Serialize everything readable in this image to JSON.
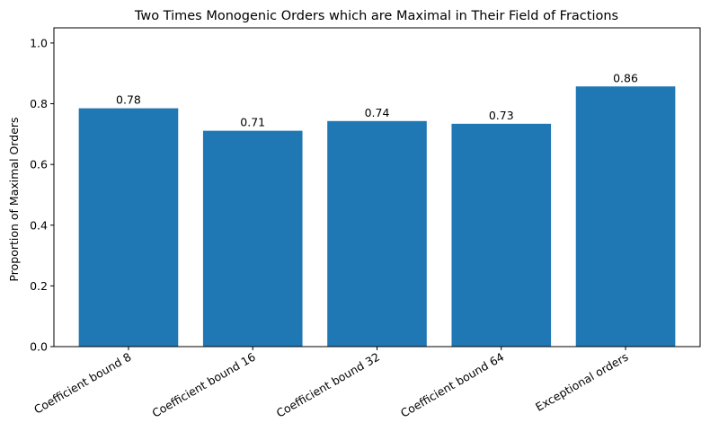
{
  "chart_data": {
    "type": "bar",
    "title": "Two Times Monogenic Orders which are Maximal in Their Field of Fractions",
    "xlabel": "",
    "ylabel": "Proportion of Maximal Orders",
    "categories": [
      "Coefficient bound 8",
      "Coefficient bound 16",
      "Coefficient bound 32",
      "Coefficient bound 64",
      "Exceptional orders"
    ],
    "values": [
      0.785,
      0.711,
      0.743,
      0.734,
      0.857
    ],
    "value_labels": [
      "0.78",
      "0.71",
      "0.74",
      "0.73",
      "0.86"
    ],
    "ylim": [
      0,
      1.05
    ],
    "yticks": [
      0.0,
      0.2,
      0.4,
      0.6,
      0.8,
      1.0
    ],
    "ytick_labels": [
      "0.0",
      "0.2",
      "0.4",
      "0.6",
      "0.8",
      "1.0"
    ],
    "bar_color": "#1f77b4",
    "grid": false,
    "legend": "none"
  }
}
